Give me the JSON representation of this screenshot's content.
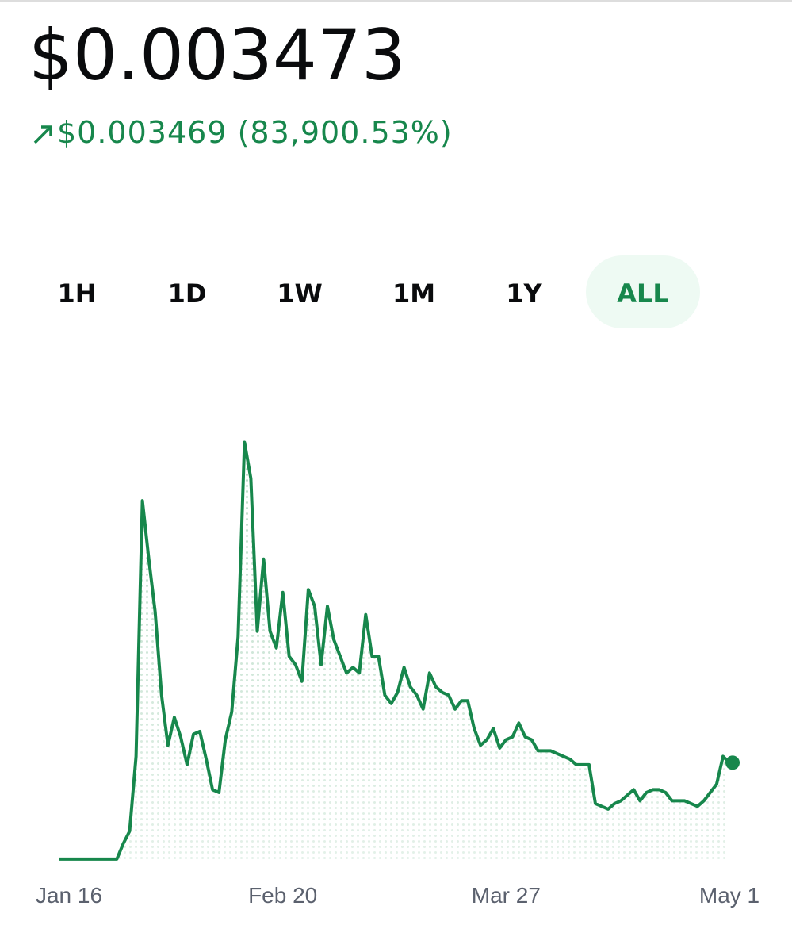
{
  "header": {
    "price": "$0.003473",
    "change": "$0.003469 (83,900.53%)"
  },
  "ranges": {
    "options": [
      "1H",
      "1D",
      "1W",
      "1M",
      "1Y",
      "ALL"
    ],
    "selected": 5
  },
  "chart_data": {
    "type": "line",
    "color": "#17874c",
    "categories": [
      "Jan 16",
      null,
      null,
      null,
      null,
      null,
      null,
      null,
      null,
      null,
      null,
      null,
      null,
      null,
      null,
      null,
      null,
      null,
      null,
      null,
      null,
      null,
      null,
      null,
      null,
      null,
      null,
      null,
      null,
      null,
      null,
      null,
      null,
      null,
      null,
      "Feb 20",
      null,
      null,
      null,
      null,
      null,
      null,
      null,
      null,
      null,
      null,
      null,
      null,
      null,
      null,
      null,
      null,
      null,
      null,
      null,
      null,
      null,
      null,
      null,
      null,
      null,
      null,
      null,
      null,
      null,
      null,
      null,
      null,
      null,
      null,
      "Mar 27",
      null,
      null,
      null,
      null,
      null,
      null,
      null,
      null,
      null,
      null,
      null,
      null,
      null,
      null,
      null,
      null,
      null,
      null,
      null,
      null,
      null,
      null,
      null,
      null,
      null,
      null,
      null,
      null,
      null,
      null,
      null,
      null,
      null,
      null,
      "May 1"
    ],
    "values": [
      4e-06,
      4e-06,
      4e-06,
      4e-06,
      4e-06,
      4e-06,
      4e-06,
      4e-06,
      4e-06,
      4e-06,
      0.00056,
      0.00101,
      0.0037,
      0.0129,
      0.0108,
      0.0089,
      0.0059,
      0.0041,
      0.0051,
      0.0044,
      0.0034,
      0.0045,
      0.0046,
      0.0036,
      0.0025,
      0.0024,
      0.0043,
      0.0053,
      0.008,
      0.015,
      0.0137,
      0.0082,
      0.0108,
      0.0082,
      0.0076,
      0.0096,
      0.0073,
      0.007,
      0.0064,
      0.0097,
      0.0091,
      0.007,
      0.0091,
      0.0079,
      0.0073,
      0.0067,
      0.0069,
      0.0067,
      0.0088,
      0.0073,
      0.0073,
      0.0059,
      0.0056,
      0.006,
      0.0069,
      0.0062,
      0.0059,
      0.0054,
      0.0067,
      0.0062,
      0.006,
      0.0059,
      0.0054,
      0.0057,
      0.0057,
      0.0047,
      0.0041,
      0.0043,
      0.0047,
      0.004,
      0.0043,
      0.0044,
      0.0049,
      0.0044,
      0.0043,
      0.0039,
      0.0039,
      0.0039,
      0.0038,
      0.0037,
      0.0036,
      0.0034,
      0.0034,
      0.0034,
      0.002,
      0.0019,
      0.0018,
      0.002,
      0.0021,
      0.0023,
      0.0025,
      0.0021,
      0.0024,
      0.0025,
      0.0025,
      0.0024,
      0.0021,
      0.0021,
      0.0021,
      0.002,
      0.0019,
      0.0021,
      0.0024,
      0.0027,
      0.0037,
      0.003473
    ],
    "ylim": [
      0,
      0.0155
    ]
  }
}
